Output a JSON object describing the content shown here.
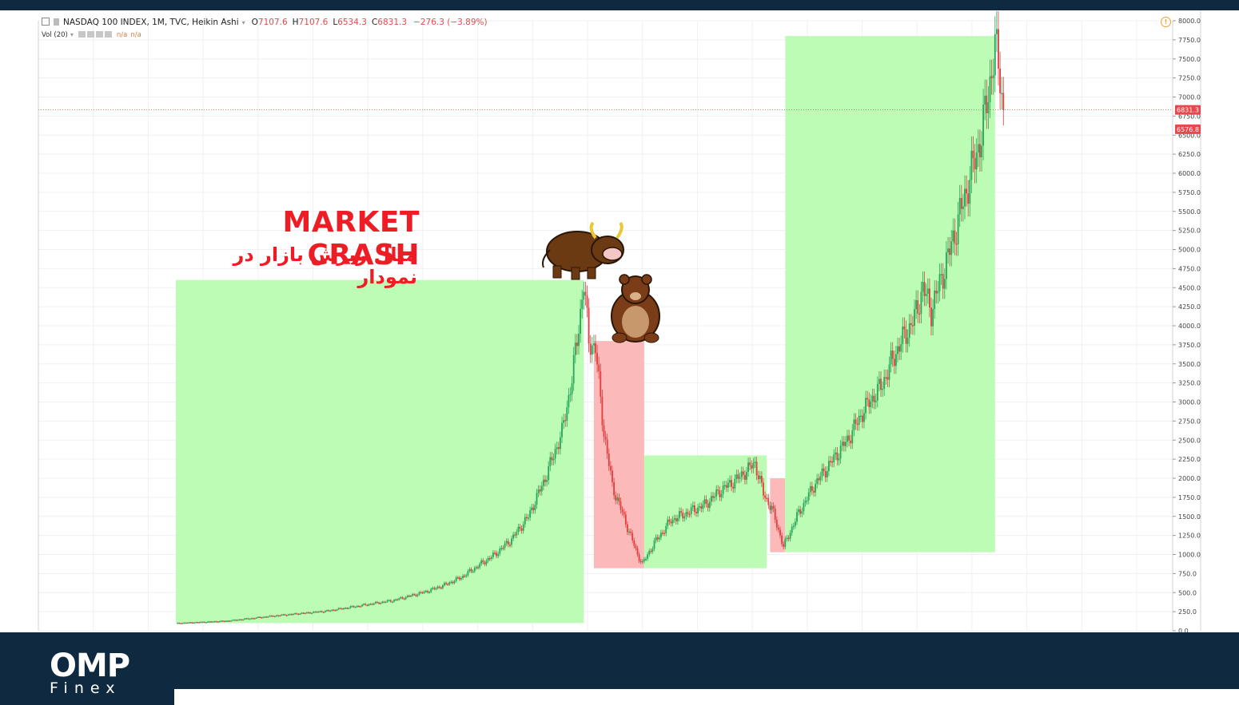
{
  "header": {
    "symbol": "NASDAQ 100 INDEX, 1M, TVC, Heikin Ashi",
    "o_label": "O",
    "o_value": "7107.6",
    "h_label": "H",
    "h_value": "7107.6",
    "l_label": "L",
    "l_value": "6534.3",
    "c_label": "C",
    "c_value": "6831.3",
    "change": "−276.3 (−3.89%)",
    "vol_label": "Vol (20)",
    "vol_na1": "n/a",
    "vol_na2": "n/a",
    "warn": "!"
  },
  "annotation": {
    "title": "MARKET CRASH",
    "subtitle": "مثال ریزش بازار در نمودار"
  },
  "brand": {
    "logo_main": "OMP",
    "logo_sub": "Finex"
  },
  "colors": {
    "bull": "#26a65b",
    "bear": "#e23d3d",
    "zone_green": "#b9fcb0",
    "zone_red": "#fbb5b5",
    "price_tag": "#e5484d",
    "navy": "#0f2a40",
    "headline": "#ee1c25"
  },
  "chart_data": {
    "type": "candlestick",
    "title": "NASDAQ 100 INDEX, 1M, TVC, Heikin Ashi",
    "ylim": [
      0,
      8000
    ],
    "y_ticks": [
      "8000.0",
      "7750.0",
      "7500.0",
      "7250.0",
      "7000.0",
      "6750.0",
      "6500.0",
      "6250.0",
      "6000.0",
      "5750.0",
      "5500.0",
      "5250.0",
      "5000.0",
      "4750.0",
      "4500.0",
      "4250.0",
      "4000.0",
      "3750.0",
      "3500.0",
      "3250.0",
      "3000.0",
      "2750.0",
      "2500.0",
      "2250.0",
      "2000.0",
      "1750.0",
      "1500.0",
      "1250.0",
      "1000.0",
      "750.0",
      "500.0",
      "250.0",
      "0.0"
    ],
    "price_labels": [
      {
        "value": 6831.3,
        "text": "6831.3"
      },
      {
        "value": 6576.8,
        "text": "6576.8"
      }
    ],
    "price_line": 6831.3,
    "path": [
      [
        0,
        100
      ],
      [
        30,
        130
      ],
      [
        60,
        200
      ],
      [
        90,
        260
      ],
      [
        110,
        330
      ],
      [
        130,
        400
      ],
      [
        150,
        520
      ],
      [
        160,
        600
      ],
      [
        170,
        700
      ],
      [
        180,
        850
      ],
      [
        190,
        1000
      ],
      [
        200,
        1200
      ],
      [
        210,
        1500
      ],
      [
        220,
        2000
      ],
      [
        230,
        2600
      ],
      [
        236,
        3300
      ],
      [
        240,
        4000
      ],
      [
        243,
        4550
      ],
      [
        246,
        3800
      ],
      [
        250,
        3700
      ],
      [
        255,
        2600
      ],
      [
        260,
        1900
      ],
      [
        265,
        1600
      ],
      [
        270,
        1300
      ],
      [
        275,
        1000
      ],
      [
        278,
        880
      ],
      [
        285,
        1150
      ],
      [
        295,
        1450
      ],
      [
        305,
        1550
      ],
      [
        315,
        1650
      ],
      [
        325,
        1850
      ],
      [
        335,
        2000
      ],
      [
        345,
        2200
      ],
      [
        350,
        1800
      ],
      [
        355,
        1600
      ],
      [
        360,
        1250
      ],
      [
        362,
        1100
      ],
      [
        370,
        1500
      ],
      [
        380,
        1900
      ],
      [
        390,
        2200
      ],
      [
        400,
        2500
      ],
      [
        410,
        2900
      ],
      [
        420,
        3200
      ],
      [
        430,
        3700
      ],
      [
        440,
        4100
      ],
      [
        445,
        4500
      ],
      [
        450,
        4200
      ],
      [
        460,
        4900
      ],
      [
        470,
        5700
      ],
      [
        480,
        6500
      ],
      [
        485,
        7200
      ],
      [
        488,
        7650
      ],
      [
        491,
        7300
      ],
      [
        493,
        6800
      ]
    ],
    "zones": [
      {
        "type": "bull",
        "from": 0,
        "to": 243,
        "low": 100,
        "high": 4600
      },
      {
        "type": "bear",
        "from": 249,
        "to": 279,
        "low": 820,
        "high": 3800
      },
      {
        "type": "bull",
        "from": 279,
        "to": 352,
        "low": 820,
        "high": 2300
      },
      {
        "type": "bear",
        "from": 354,
        "to": 363,
        "low": 1030,
        "high": 2000
      },
      {
        "type": "bull",
        "from": 363,
        "to": 488,
        "low": 1030,
        "high": 7800
      }
    ]
  }
}
